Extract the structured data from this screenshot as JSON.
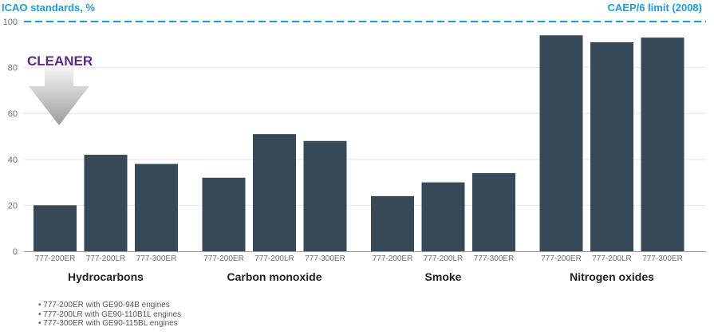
{
  "chart_data": {
    "type": "bar",
    "ylabel": "ICAO standards, %",
    "ylim": [
      0,
      100
    ],
    "yticks": [
      0,
      20,
      40,
      60,
      80,
      100
    ],
    "grid": true,
    "groups": [
      "Hydrocarbons",
      "Carbon monoxide",
      "Smoke",
      "Nitrogen oxides"
    ],
    "categories": [
      "777-200ER",
      "777-200LR",
      "777-300ER"
    ],
    "values": [
      [
        20,
        42,
        38
      ],
      [
        32,
        51,
        48
      ],
      [
        24,
        30,
        34
      ],
      [
        94,
        91,
        93
      ]
    ],
    "reference_line": {
      "value": 100,
      "label": "CAEP/6 limit (2008)",
      "style": "dashed"
    },
    "annotation": "CLEANER"
  },
  "footnotes": [
    "777-200ER with GE90-94B engines",
    "777-200LR with GE90-110B1L engines",
    "777-300ER with GE90-115BL engines"
  ],
  "colors": {
    "bar": "#374856",
    "reference": "#1e9bd7",
    "annotation": "#5b2a86",
    "grid": "#e6e6e6",
    "axis": "#9a9a9a",
    "arrow_light": "#f3f3f3",
    "arrow_dark": "#9c9c9c"
  }
}
